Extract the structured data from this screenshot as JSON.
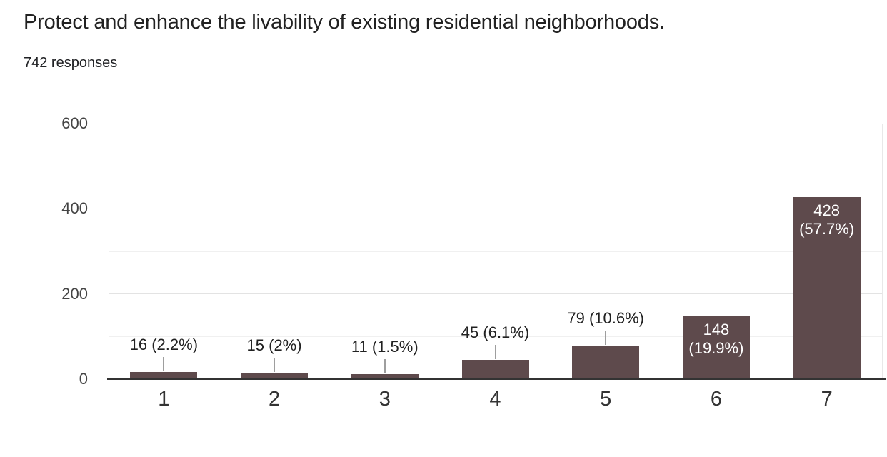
{
  "chart_data": {
    "type": "bar",
    "title": "Protect and enhance the livability of existing residential neighborhoods.",
    "subtitle": "742 responses",
    "categories": [
      "1",
      "2",
      "3",
      "4",
      "5",
      "6",
      "7"
    ],
    "values": [
      16,
      15,
      11,
      45,
      79,
      148,
      428
    ],
    "labels": [
      "16 (2.2%)",
      "15 (2%)",
      "11 (1.5%)",
      "45 (6.1%)",
      "79 (10.6%)",
      "148 (19.9%)",
      "428 (57.7%)"
    ],
    "label_placement": [
      "above",
      "above",
      "above",
      "above",
      "above",
      "inside",
      "inside"
    ],
    "total_responses": 742,
    "xlabel": "",
    "ylabel": "",
    "ylim": [
      0,
      600
    ],
    "yticks": [
      0,
      200,
      400,
      600
    ],
    "minor_gridlines": [
      100,
      300,
      500
    ],
    "legend": "none",
    "grid": "on",
    "colors": {
      "bar": "#5e4a4c",
      "label_inside": "#ffffff",
      "label_outside": "#212121",
      "axis_line": "#333333",
      "gridline_major": "#e3e3e3",
      "gridline_minor": "#f0f0f0",
      "plot_border": "#e8e8e8",
      "y_tick_text": "#444444",
      "x_tick_text": "#333333",
      "stem": "#9e9e9e"
    }
  }
}
